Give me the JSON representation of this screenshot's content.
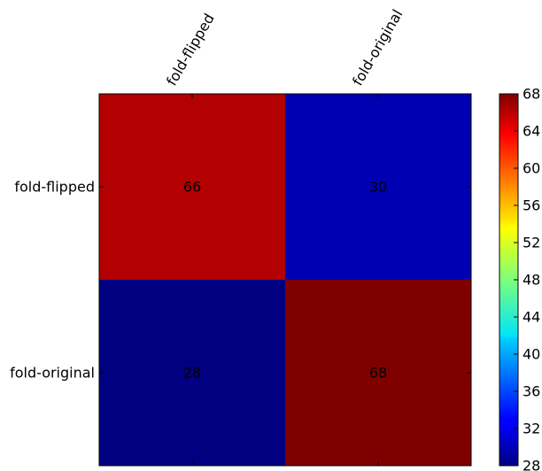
{
  "chart_data": {
    "type": "heatmap",
    "rows": [
      "fold-flipped",
      "fold-original"
    ],
    "columns": [
      "fold-flipped",
      "fold-original"
    ],
    "values": [
      [
        66,
        30
      ],
      [
        28,
        68
      ]
    ],
    "colormap": "jet",
    "vmin": 28,
    "vmax": 68,
    "colorbar_ticks": [
      28,
      32,
      36,
      40,
      44,
      48,
      52,
      56,
      60,
      64,
      68
    ],
    "x_tick_position": "top",
    "x_tick_rotation_deg": 60,
    "grid": false
  }
}
